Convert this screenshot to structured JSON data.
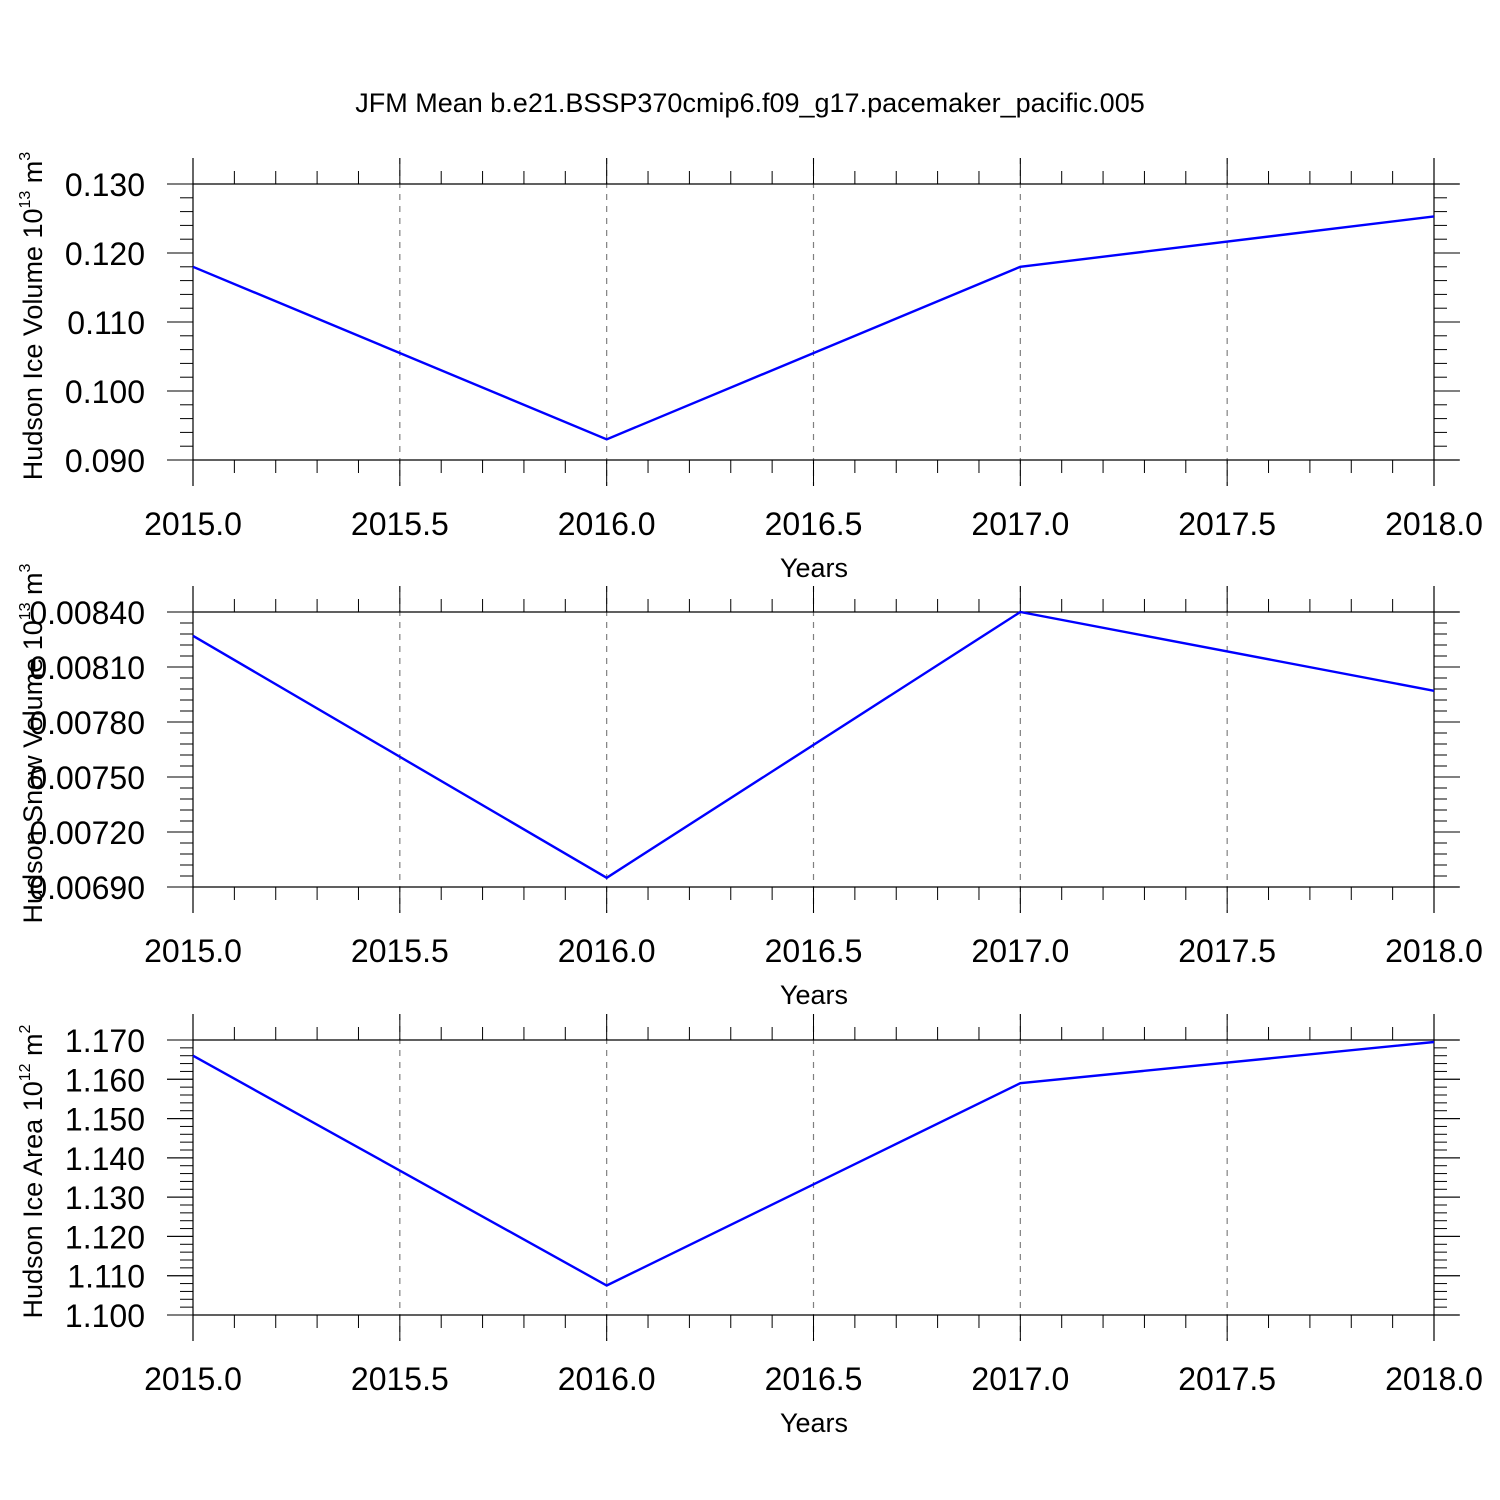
{
  "figure": {
    "title": "JFM Mean b.e21.BSSP370cmip6.f09_g17.pacemaker_pacific.005"
  },
  "colors": {
    "series": "#0000ff",
    "axis": "#000000",
    "grid": "#808080"
  },
  "chart_data": [
    {
      "type": "line",
      "title": "JFM Mean b.e21.BSSP370cmip6.f09_g17.pacemaker_pacific.005",
      "xlabel": "Years",
      "ylabel": "Hudson Ice Volume 10",
      "ylabel_exp": "13",
      "ylabel_unit": " m",
      "ylabel_unit_exp": "3",
      "xlim": [
        2015.0,
        2018.0
      ],
      "ylim": [
        0.09,
        0.13
      ],
      "xticks": [
        2015.0,
        2015.5,
        2016.0,
        2016.5,
        2017.0,
        2017.5,
        2018.0
      ],
      "xtick_labels": [
        "2015.0",
        "2015.5",
        "2016.0",
        "2016.5",
        "2017.0",
        "2017.5",
        "2018.0"
      ],
      "yticks": [
        0.09,
        0.1,
        0.11,
        0.12,
        0.13
      ],
      "ytick_labels": [
        "0.090",
        "0.100",
        "0.110",
        "0.120",
        "0.130"
      ],
      "grid": "vertical dashed at x ticks",
      "series": [
        {
          "x": [
            2015,
            2016,
            2017,
            2018
          ],
          "values": [
            0.118,
            0.093,
            0.118,
            0.1253
          ]
        }
      ]
    },
    {
      "type": "line",
      "xlabel": "Years",
      "ylabel": "Hudson Snow Volume 10",
      "ylabel_exp": "13",
      "ylabel_unit": " m",
      "ylabel_unit_exp": "3",
      "xlim": [
        2015.0,
        2018.0
      ],
      "ylim": [
        0.0069,
        0.0084
      ],
      "xticks": [
        2015.0,
        2015.5,
        2016.0,
        2016.5,
        2017.0,
        2017.5,
        2018.0
      ],
      "xtick_labels": [
        "2015.0",
        "2015.5",
        "2016.0",
        "2016.5",
        "2017.0",
        "2017.5",
        "2018.0"
      ],
      "yticks": [
        0.0069,
        0.0072,
        0.0075,
        0.0078,
        0.0081,
        0.0084
      ],
      "ytick_labels": [
        "0.00690",
        "0.00720",
        "0.00750",
        "0.00780",
        "0.00810",
        "0.00840"
      ],
      "grid": "vertical dashed at x ticks",
      "series": [
        {
          "x": [
            2015,
            2016,
            2017,
            2018
          ],
          "values": [
            0.00827,
            0.00695,
            0.0084,
            0.00797
          ]
        }
      ]
    },
    {
      "type": "line",
      "xlabel": "Years",
      "ylabel": "Hudson Ice Area 10",
      "ylabel_exp": "12",
      "ylabel_unit": " m",
      "ylabel_unit_exp": "2",
      "xlim": [
        2015.0,
        2018.0
      ],
      "ylim": [
        1.1,
        1.17
      ],
      "xticks": [
        2015.0,
        2015.5,
        2016.0,
        2016.5,
        2017.0,
        2017.5,
        2018.0
      ],
      "xtick_labels": [
        "2015.0",
        "2015.5",
        "2016.0",
        "2016.5",
        "2017.0",
        "2017.5",
        "2018.0"
      ],
      "yticks": [
        1.1,
        1.11,
        1.12,
        1.13,
        1.14,
        1.15,
        1.16,
        1.17
      ],
      "ytick_labels": [
        "1.100",
        "1.110",
        "1.120",
        "1.130",
        "1.140",
        "1.150",
        "1.160",
        "1.170"
      ],
      "grid": "vertical dashed at x ticks",
      "series": [
        {
          "x": [
            2015,
            2016,
            2017,
            2018
          ],
          "values": [
            1.166,
            1.1075,
            1.159,
            1.1695
          ]
        }
      ]
    }
  ]
}
